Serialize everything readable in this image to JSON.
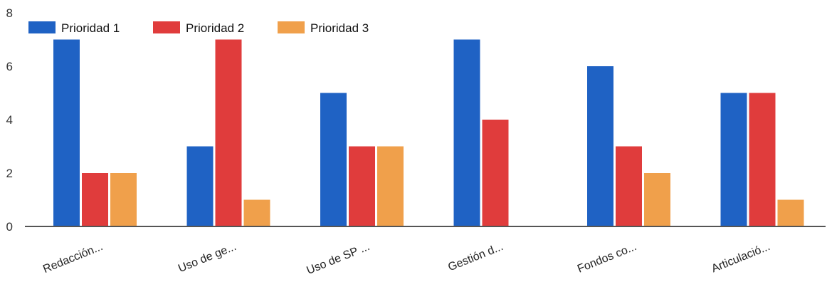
{
  "chart_data": {
    "type": "bar",
    "categories": [
      "Redacción...",
      "Uso de ge...",
      "Uso de SP ...",
      "Gestión d...",
      "Fondos co...",
      "Articulació..."
    ],
    "series": [
      {
        "name": "Prioridad 1",
        "color": "#1f62c4",
        "values": [
          7,
          3,
          5,
          7,
          6,
          5
        ]
      },
      {
        "name": "Prioridad 2",
        "color": "#e03c3c",
        "values": [
          2,
          7,
          3,
          4,
          3,
          5
        ]
      },
      {
        "name": "Prioridad 3",
        "color": "#f0a04b",
        "values": [
          2,
          1,
          3,
          0,
          2,
          1
        ]
      }
    ],
    "yticks": [
      0,
      2,
      4,
      6,
      8
    ],
    "ylim": [
      0,
      8
    ],
    "grid": false,
    "legend": "top-left"
  }
}
